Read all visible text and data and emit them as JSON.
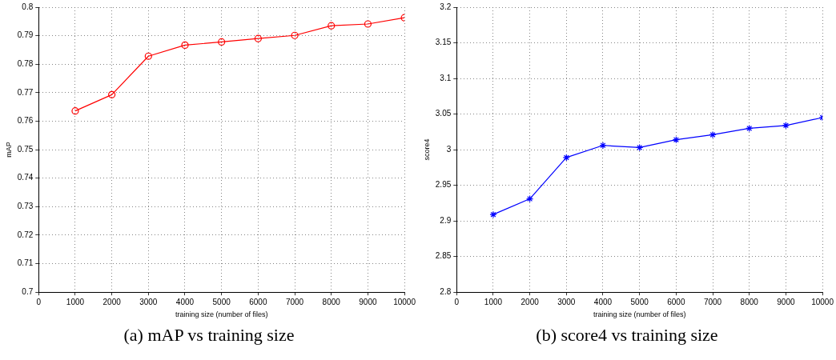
{
  "chart_data": [
    {
      "type": "line",
      "title": "(a) mAP vs training size",
      "xlabel": "training size (number of files)",
      "ylabel": "mAP",
      "x": [
        1000,
        2000,
        3000,
        4000,
        5000,
        6000,
        7000,
        8000,
        9000,
        10000
      ],
      "series": [
        {
          "color": "#ff0000",
          "values": [
            0.7636,
            0.7693,
            0.7828,
            0.7867,
            0.7878,
            0.789,
            0.7901,
            0.7935,
            0.7941,
            0.7963
          ]
        }
      ],
      "xlim": [
        0,
        10000
      ],
      "xticks": [
        0,
        1000,
        2000,
        3000,
        4000,
        5000,
        6000,
        7000,
        8000,
        9000,
        10000
      ],
      "ylim": [
        0.7,
        0.8
      ],
      "yticks": [
        0.7,
        0.71,
        0.72,
        0.73,
        0.74,
        0.75,
        0.76,
        0.77,
        0.78,
        0.79,
        0.8
      ],
      "grid": true,
      "marker": "circle",
      "line_style": "solid"
    },
    {
      "type": "line",
      "title": "(b) score4 vs training size",
      "xlabel": "training size (number of files)",
      "ylabel": "score4",
      "x": [
        1000,
        2000,
        3000,
        4000,
        5000,
        6000,
        7000,
        8000,
        9000,
        10000
      ],
      "series": [
        {
          "color": "#0000ff",
          "values": [
            2.909,
            2.931,
            2.989,
            3.006,
            3.003,
            3.014,
            3.021,
            3.03,
            3.034,
            3.045
          ]
        }
      ],
      "xlim": [
        0,
        10000
      ],
      "xticks": [
        0,
        1000,
        2000,
        3000,
        4000,
        5000,
        6000,
        7000,
        8000,
        9000,
        10000
      ],
      "ylim": [
        2.8,
        3.2
      ],
      "yticks": [
        2.8,
        2.85,
        2.9,
        2.95,
        3,
        3.05,
        3.1,
        3.15,
        3.2
      ],
      "grid": true,
      "marker": "cross",
      "line_style": "solid"
    }
  ]
}
